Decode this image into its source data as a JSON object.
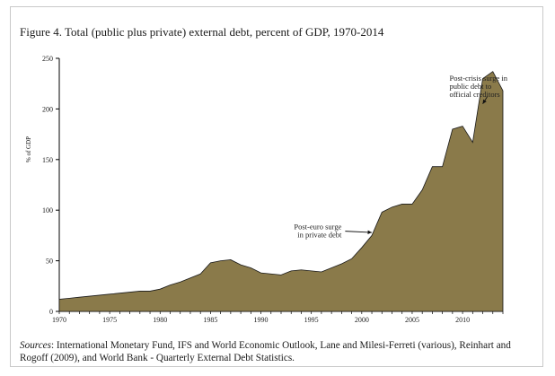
{
  "chart_data": {
    "type": "area",
    "title": "Figure 4. Total (public plus private) external debt, percent of GDP, 1970-2014",
    "xlabel": "",
    "ylabel": "% of GDP",
    "xlim": [
      1970,
      2014
    ],
    "ylim": [
      0,
      250
    ],
    "x_ticks": [
      "1970",
      "1975",
      "1980",
      "1985",
      "1990",
      "1995",
      "2000",
      "2005",
      "2010"
    ],
    "y_ticks": [
      "0",
      "50",
      "100",
      "150",
      "200",
      "250"
    ],
    "fill_color": "#8a7a4a",
    "stroke_color": "#1a1a1a",
    "x": [
      1970,
      1971,
      1972,
      1973,
      1974,
      1975,
      1976,
      1977,
      1978,
      1979,
      1980,
      1981,
      1982,
      1983,
      1984,
      1985,
      1986,
      1987,
      1988,
      1989,
      1990,
      1991,
      1992,
      1993,
      1994,
      1995,
      1996,
      1997,
      1998,
      1999,
      2000,
      2001,
      2002,
      2003,
      2004,
      2005,
      2006,
      2007,
      2008,
      2009,
      2010,
      2011,
      2012,
      2013,
      2014
    ],
    "values": [
      12,
      13,
      14,
      15,
      16,
      17,
      18,
      19,
      20,
      20,
      22,
      26,
      29,
      33,
      37,
      48,
      50,
      51,
      46,
      43,
      38,
      37,
      36,
      40,
      41,
      40,
      39,
      43,
      47,
      52,
      63,
      75,
      98,
      103,
      106,
      106,
      120,
      143,
      143,
      180,
      183,
      167,
      230,
      237,
      218
    ],
    "annotations": [
      {
        "lines": [
          "Post-euro surge",
          "in private debt"
        ],
        "x": 1998,
        "y": 81,
        "arrow_to": [
          2001,
          78
        ]
      },
      {
        "lines": [
          "Post-crisis surge in",
          "public debt to",
          "official creditors"
        ],
        "x": 2008.7,
        "y": 228,
        "arrow_to": [
          2012,
          205
        ]
      }
    ]
  },
  "sources": {
    "lead": "Sources",
    "text": ": International Monetary Fund, IFS and World Economic Outlook, Lane and Milesi-Ferreti (various), Reinhart and Rogoff (2009), and World Bank - Quarterly External Debt Statistics."
  }
}
